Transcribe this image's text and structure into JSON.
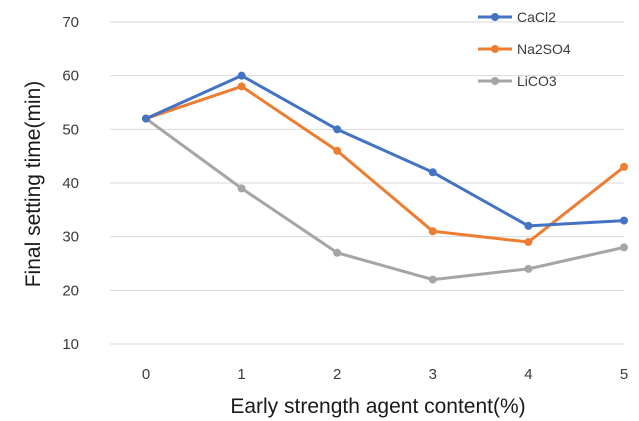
{
  "chart_data": {
    "type": "line",
    "title": "",
    "xlabel": "Early strength agent content(%)",
    "ylabel": "Final setting time(min)",
    "x": [
      0,
      1,
      2,
      3,
      4,
      5
    ],
    "x_tick_labels": [
      "0",
      "1",
      "2",
      "3",
      "4",
      "5"
    ],
    "y_tick_labels": [
      "10",
      "20",
      "30",
      "40",
      "50",
      "60",
      "70"
    ],
    "ylim": [
      10,
      70
    ],
    "grid": true,
    "legend": "top-right",
    "series": [
      {
        "name": "CaCl2",
        "color": "#4472C4",
        "values": [
          52,
          60,
          50,
          42,
          32,
          33
        ]
      },
      {
        "name": "Na2SO4",
        "color": "#ED7D31",
        "values": [
          52,
          58,
          46,
          31,
          29,
          43
        ]
      },
      {
        "name": "LiCO3",
        "color": "#A5A5A5",
        "values": [
          52,
          39,
          27,
          22,
          24,
          28
        ]
      }
    ]
  }
}
